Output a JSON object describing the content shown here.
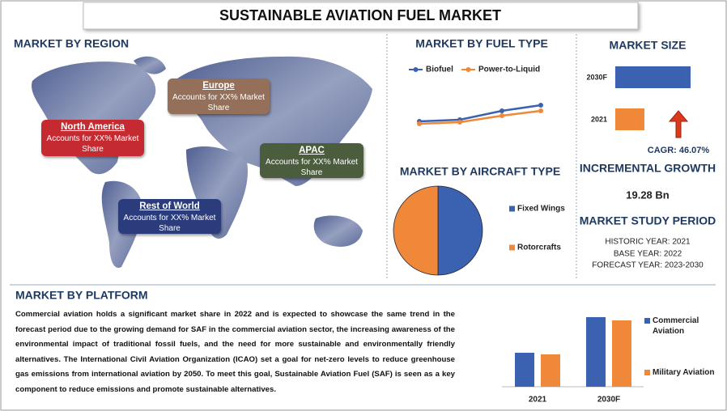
{
  "title": "SUSTAINABLE AVIATION FUEL MARKET",
  "region": {
    "heading": "MARKET BY REGION",
    "callouts": [
      {
        "name": "Europe",
        "text": "Accounts for XX% Market Share"
      },
      {
        "name": "North America",
        "text": "Accounts for XX% Market Share"
      },
      {
        "name": "APAC",
        "text": "Accounts for XX% Market Share"
      },
      {
        "name": "Rest of World",
        "text": "Accounts for XX% Market Share"
      }
    ]
  },
  "stats": {
    "cagr": "CAGR:  46.07%",
    "growth_heading": "INCREMENTAL GROWTH",
    "growth_value": "19.28 Bn",
    "period_heading": "MARKET STUDY PERIOD",
    "historic": "HISTORIC YEAR: 2021",
    "base": "BASE YEAR: 2022",
    "forecast": "FORECAST YEAR: 2023-2030"
  },
  "platform": {
    "heading": "MARKET BY PLATFORM",
    "text": "Commercial aviation holds a significant market share in 2022 and is expected to showcase the same trend in the forecast period due to the growing demand for SAF in the commercial aviation sector, the increasing awareness of the environmental impact of traditional fossil fuels, and the need for more sustainable and environmentally friendly alternatives. The International Civil Aviation Organization (ICAO) set a goal for net-zero levels to reduce greenhouse gas emissions from international aviation by 2050. To meet this goal, Sustainable Aviation Fuel (SAF) is seen as a key component to reduce emissions and promote sustainable alternatives."
  },
  "chart_data": [
    {
      "type": "line",
      "title": "MARKET BY FUEL TYPE",
      "categories": [
        null,
        null,
        null,
        null
      ],
      "series": [
        {
          "name": "Biofuel",
          "color": "#3b62b0",
          "values": [
            2.5,
            3,
            5.75,
            7.5
          ]
        },
        {
          "name": "Power-to-Liquid",
          "color": "#f0883a",
          "values": [
            1.75,
            2.25,
            4.25,
            5.75
          ]
        }
      ],
      "ylim": [
        0,
        10
      ]
    },
    {
      "type": "pie",
      "title": "MARKET BY AIRCRAFT TYPE",
      "categories": [
        "Fixed Wings",
        "Rotorcrafts"
      ],
      "values": [
        50,
        50
      ],
      "colors": [
        "#3b62b0",
        "#f0883a"
      ]
    },
    {
      "type": "hbar",
      "title": "MARKET SIZE",
      "categories": [
        "2030F",
        "2021"
      ],
      "values": [
        93,
        36
      ],
      "colors": [
        "#3b62b0",
        "#f0883a"
      ],
      "xlim": [
        0,
        100
      ]
    },
    {
      "type": "bar",
      "categories": [
        "2021",
        "2030F"
      ],
      "series": [
        {
          "name": "Commercial Aviation",
          "color": "#3b62b0",
          "values": [
            42,
            86
          ]
        },
        {
          "name": "Military Aviation",
          "color": "#f0883a",
          "values": [
            40,
            82
          ]
        }
      ],
      "ylim": [
        0,
        100
      ]
    }
  ]
}
